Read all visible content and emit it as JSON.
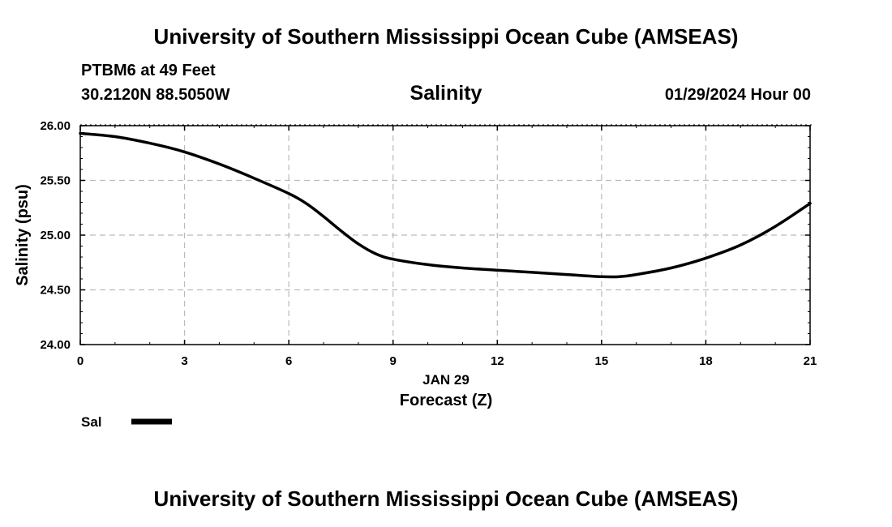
{
  "header": {
    "title": "University of Southern Mississippi Ocean Cube (AMSEAS)",
    "station": "PTBM6 at 49 Feet",
    "coords": "30.2120N  88.5050W",
    "date": "01/29/2024 Hour 00"
  },
  "footer": {
    "title": "University of Southern Mississippi Ocean Cube (AMSEAS)"
  },
  "chart_data": {
    "type": "line",
    "title": "Salinity",
    "xlabel": "Forecast (Z)",
    "xlabel_date": "JAN 29",
    "ylabel": "Salinity (psu)",
    "xlim": [
      0,
      21
    ],
    "ylim": [
      24.0,
      26.0
    ],
    "x_ticks": [
      0,
      3,
      6,
      9,
      12,
      15,
      18,
      21
    ],
    "y_ticks": [
      24.0,
      24.5,
      25.0,
      25.5,
      26.0
    ],
    "y_tick_labels": [
      "24.00",
      "24.50",
      "25.00",
      "25.50",
      "26.00"
    ],
    "grid": true,
    "legend_position": "bottom-left",
    "series": [
      {
        "name": "Sal",
        "color": "#000000",
        "x": [
          0,
          1,
          2,
          3,
          4,
          5,
          6,
          6.5,
          7,
          7.5,
          8,
          8.5,
          9,
          10,
          11,
          12,
          13,
          14,
          15,
          15.5,
          16,
          17,
          18,
          19,
          20,
          21
        ],
        "values": [
          25.93,
          25.9,
          25.84,
          25.76,
          25.65,
          25.52,
          25.38,
          25.29,
          25.17,
          25.04,
          24.92,
          24.83,
          24.78,
          24.73,
          24.7,
          24.68,
          24.66,
          24.64,
          24.62,
          24.62,
          24.64,
          24.7,
          24.79,
          24.91,
          25.08,
          25.29
        ]
      }
    ]
  }
}
